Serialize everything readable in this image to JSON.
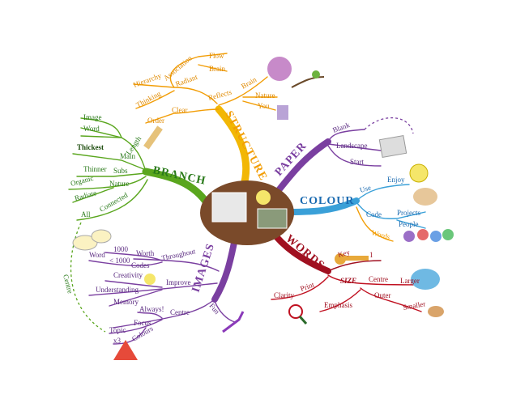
{
  "branches": [
    {
      "label": "STRUCTURE",
      "words": [
        "Radiant",
        "Clear",
        "Reflects",
        "Hierarchy",
        "Association",
        "Flow",
        "Brain",
        "Thinking",
        "Order",
        "Brain",
        "Nature",
        "You"
      ]
    },
    {
      "label": "BRANCH",
      "words": [
        "Length",
        "Main",
        "Subs",
        "Nature",
        "Connected",
        "Thickest",
        "Image",
        "Word",
        "Thinner",
        "Organic",
        "Radiate",
        "All"
      ]
    },
    {
      "label": "PAPER",
      "words": [
        "Blank",
        "Landscape",
        "Start"
      ]
    },
    {
      "label": "COLOUR",
      "words": [
        "Use",
        "Enjoy",
        "Code",
        "Projects",
        "People",
        "Words"
      ]
    },
    {
      "label": "WORDS",
      "words": [
        "Key",
        "1",
        "SIZE",
        "Print",
        "Clarity",
        "Centre",
        "Larger",
        "Outer",
        "Smaller",
        "Emphasis"
      ]
    },
    {
      "label": "IMAGES",
      "words": [
        "Throughout",
        "Worth",
        "1000",
        "Codes",
        "< 1000",
        "Word",
        "Creativity",
        "Improve",
        "Understanding",
        "Memory",
        "Centre",
        "Always!",
        "Focus",
        "Topic",
        "Colours",
        "x3",
        "Fun",
        "Centre"
      ]
    }
  ]
}
